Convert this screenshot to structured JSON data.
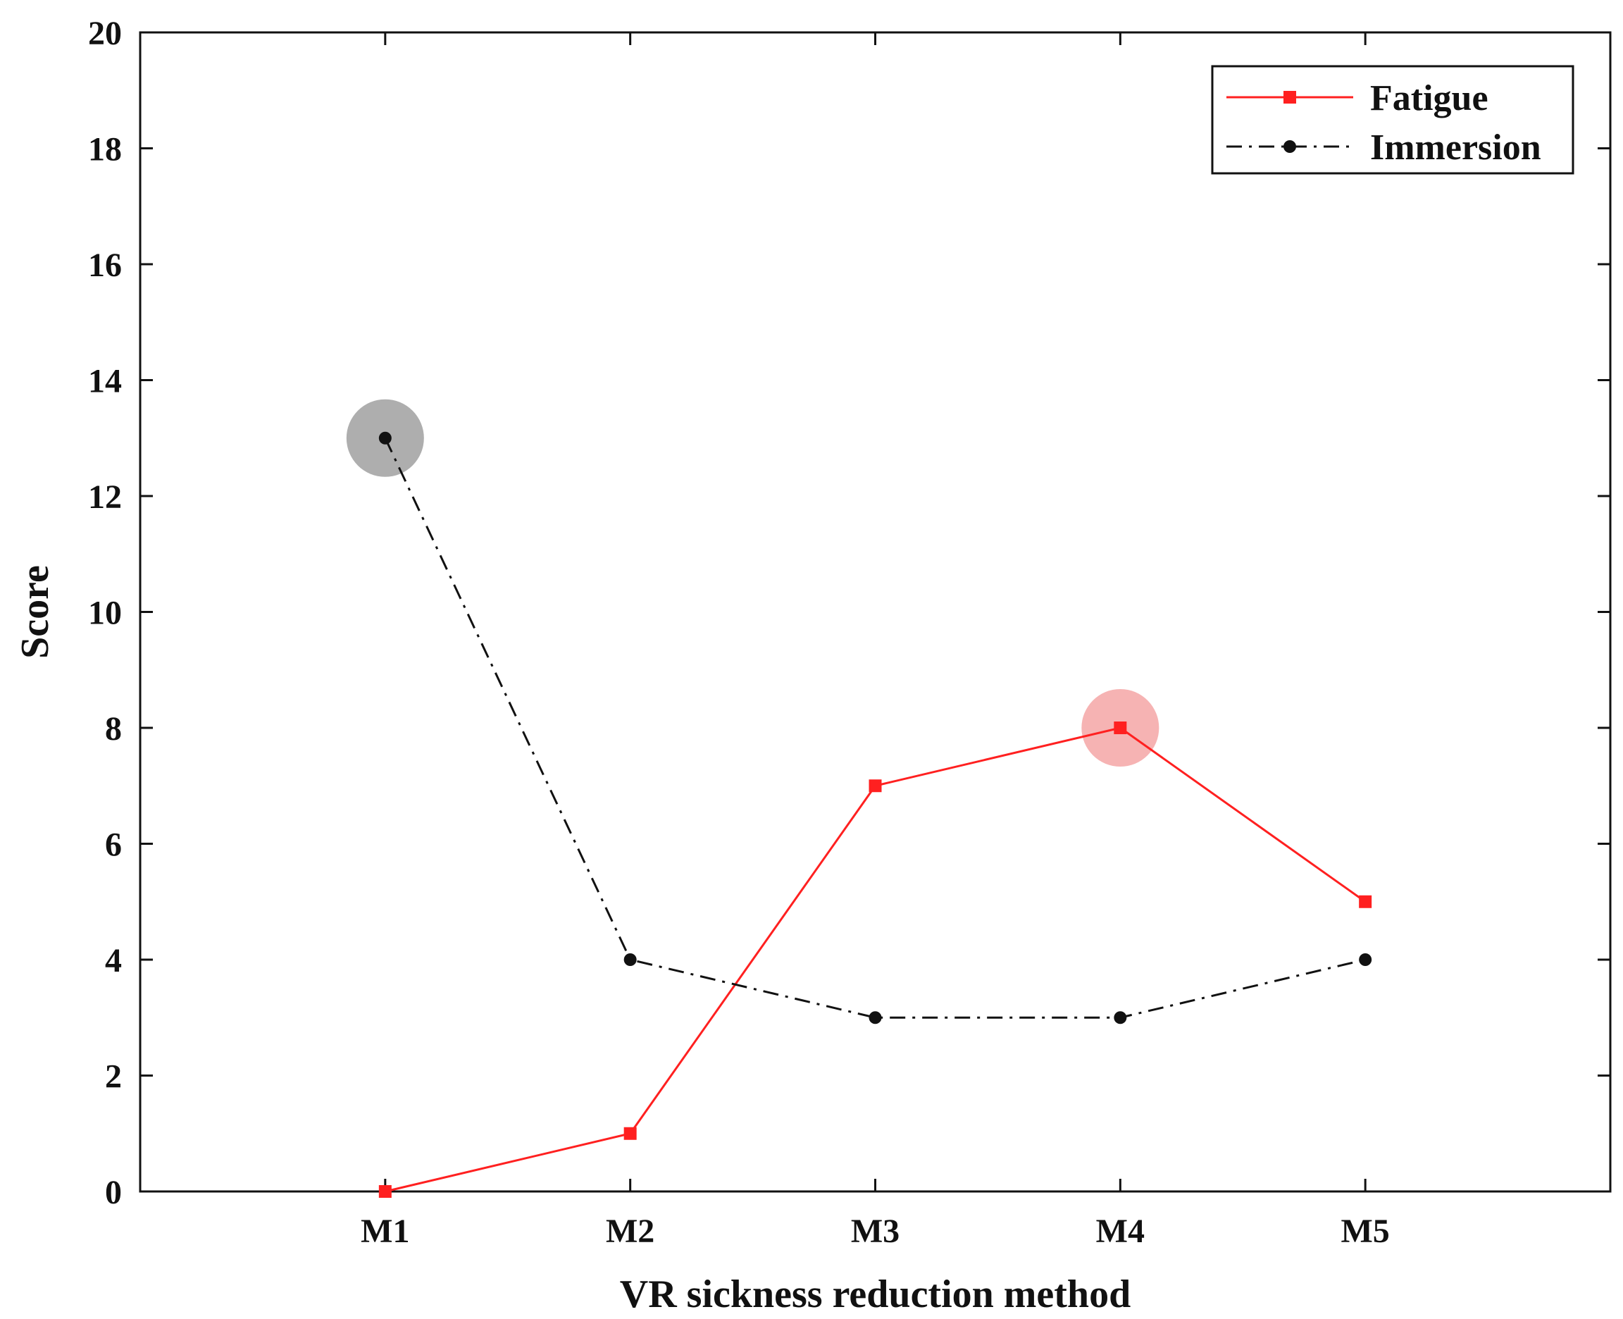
{
  "chart_data": {
    "type": "line",
    "title": "",
    "xlabel": "VR sickness reduction method",
    "ylabel": "Score",
    "categories": [
      "M1",
      "M2",
      "M3",
      "M4",
      "M5"
    ],
    "ylim": [
      0,
      20
    ],
    "yticks": [
      "0",
      "2",
      "4",
      "6",
      "8",
      "10",
      "12",
      "14",
      "16",
      "18",
      "20"
    ],
    "grid": false,
    "legend_position": "top-right",
    "series": [
      {
        "name": "Fatigue",
        "color": "#ff2020",
        "marker": "square",
        "line_style": "solid",
        "values": [
          0,
          1,
          7,
          8,
          5
        ],
        "highlight_index": 3,
        "highlight_color": "#f4a6a6"
      },
      {
        "name": "Immersion",
        "color": "#111111",
        "marker": "circle",
        "line_style": "dash-dot",
        "values": [
          13,
          4,
          3,
          3,
          4
        ],
        "highlight_index": 0,
        "highlight_color": "#a0a0a0"
      }
    ]
  }
}
